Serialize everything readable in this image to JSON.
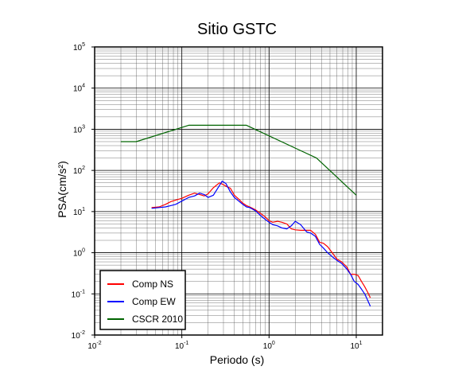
{
  "chart_data": {
    "type": "line",
    "title": "Sitio GSTC",
    "xlabel": "Periodo (s)",
    "ylabel": "PSA(cm/s²)",
    "x_scale": "log",
    "y_scale": "log",
    "xlim": [
      0.01,
      20
    ],
    "ylim": [
      0.01,
      100000
    ],
    "grid": true,
    "legend_position": "bottom-left",
    "x_ticks": [
      {
        "base": "10",
        "exp": "-2",
        "value": 0.01
      },
      {
        "base": "10",
        "exp": "-1",
        "value": 0.1
      },
      {
        "base": "10",
        "exp": "0",
        "value": 1
      },
      {
        "base": "10",
        "exp": "1",
        "value": 10
      }
    ],
    "y_ticks": [
      {
        "base": "10",
        "exp": "-2",
        "value": 0.01
      },
      {
        "base": "10",
        "exp": "-1",
        "value": 0.1
      },
      {
        "base": "10",
        "exp": "0",
        "value": 1
      },
      {
        "base": "10",
        "exp": "1",
        "value": 10
      },
      {
        "base": "10",
        "exp": "2",
        "value": 100
      },
      {
        "base": "10",
        "exp": "3",
        "value": 1000
      },
      {
        "base": "10",
        "exp": "4",
        "value": 10000
      },
      {
        "base": "10",
        "exp": "5",
        "value": 100000
      }
    ],
    "series": [
      {
        "name": "Comp NS",
        "color": "#ff0000",
        "points": [
          [
            0.045,
            12.5
          ],
          [
            0.055,
            13
          ],
          [
            0.065,
            15
          ],
          [
            0.075,
            17.5
          ],
          [
            0.085,
            19
          ],
          [
            0.1,
            21
          ],
          [
            0.12,
            25
          ],
          [
            0.14,
            28
          ],
          [
            0.16,
            26
          ],
          [
            0.18,
            24
          ],
          [
            0.2,
            27
          ],
          [
            0.23,
            38
          ],
          [
            0.27,
            50
          ],
          [
            0.3,
            45
          ],
          [
            0.33,
            40
          ],
          [
            0.36,
            37
          ],
          [
            0.4,
            25
          ],
          [
            0.45,
            20
          ],
          [
            0.5,
            16
          ],
          [
            0.55,
            14
          ],
          [
            0.6,
            13
          ],
          [
            0.7,
            11
          ],
          [
            0.8,
            9
          ],
          [
            0.9,
            7.5
          ],
          [
            1.0,
            6
          ],
          [
            1.1,
            5.5
          ],
          [
            1.25,
            5.8
          ],
          [
            1.4,
            5.5
          ],
          [
            1.6,
            5
          ],
          [
            1.8,
            3.8
          ],
          [
            2.0,
            3.6
          ],
          [
            2.3,
            3.5
          ],
          [
            2.7,
            3.5
          ],
          [
            3.0,
            3.5
          ],
          [
            3.4,
            2.8
          ],
          [
            3.8,
            1.8
          ],
          [
            4.2,
            1.7
          ],
          [
            4.7,
            1.4
          ],
          [
            5.3,
            1.0
          ],
          [
            6.0,
            0.7
          ],
          [
            6.8,
            0.6
          ],
          [
            7.8,
            0.45
          ],
          [
            8.6,
            0.3
          ],
          [
            9.5,
            0.3
          ],
          [
            10.5,
            0.28
          ],
          [
            11.5,
            0.2
          ],
          [
            12.5,
            0.15
          ],
          [
            13.5,
            0.11
          ],
          [
            14.5,
            0.08
          ]
        ]
      },
      {
        "name": "Comp EW",
        "color": "#0000ff",
        "points": [
          [
            0.045,
            12
          ],
          [
            0.055,
            12.5
          ],
          [
            0.065,
            13
          ],
          [
            0.075,
            14
          ],
          [
            0.085,
            15
          ],
          [
            0.1,
            18
          ],
          [
            0.12,
            22
          ],
          [
            0.14,
            24
          ],
          [
            0.16,
            28
          ],
          [
            0.18,
            26
          ],
          [
            0.2,
            22
          ],
          [
            0.23,
            25
          ],
          [
            0.26,
            38
          ],
          [
            0.29,
            55
          ],
          [
            0.32,
            48
          ],
          [
            0.36,
            30
          ],
          [
            0.4,
            22
          ],
          [
            0.45,
            18
          ],
          [
            0.5,
            15
          ],
          [
            0.55,
            13
          ],
          [
            0.6,
            12.5
          ],
          [
            0.7,
            10.5
          ],
          [
            0.8,
            8
          ],
          [
            0.9,
            6.5
          ],
          [
            1.0,
            5.5
          ],
          [
            1.1,
            4.8
          ],
          [
            1.25,
            4.5
          ],
          [
            1.4,
            4.0
          ],
          [
            1.6,
            3.8
          ],
          [
            1.8,
            4.5
          ],
          [
            2.0,
            5.8
          ],
          [
            2.3,
            4.8
          ],
          [
            2.7,
            3.2
          ],
          [
            3.0,
            3.0
          ],
          [
            3.4,
            2.5
          ],
          [
            3.8,
            1.6
          ],
          [
            4.2,
            1.3
          ],
          [
            4.7,
            1.0
          ],
          [
            5.3,
            0.8
          ],
          [
            6.0,
            0.65
          ],
          [
            6.8,
            0.55
          ],
          [
            7.8,
            0.4
          ],
          [
            8.6,
            0.3
          ],
          [
            9.5,
            0.2
          ],
          [
            10.5,
            0.17
          ],
          [
            11.5,
            0.13
          ],
          [
            12.5,
            0.1
          ],
          [
            13.5,
            0.07
          ],
          [
            14.5,
            0.05
          ]
        ]
      },
      {
        "name": "CSCR 2010",
        "color": "#006400",
        "points": [
          [
            0.02,
            500
          ],
          [
            0.03,
            500
          ],
          [
            0.12,
            1250
          ],
          [
            0.55,
            1250
          ],
          [
            3.5,
            200
          ],
          [
            10.0,
            25
          ]
        ]
      }
    ]
  }
}
